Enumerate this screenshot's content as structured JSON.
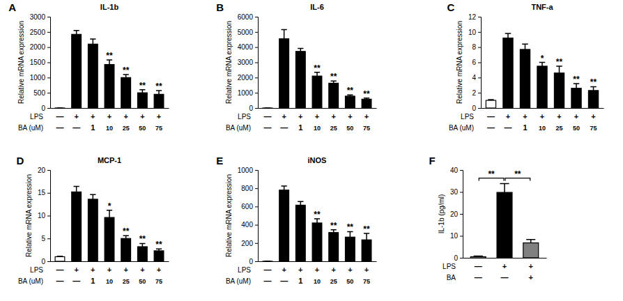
{
  "chart_data": [
    {
      "type": "bar",
      "panel": "A",
      "title": "IL-1b",
      "y_label": "Relative mRNA expression",
      "x_rows": [
        {
          "label": "LPS",
          "cells": [
            "—",
            "+",
            "+",
            "+",
            "+",
            "+",
            "+"
          ]
        },
        {
          "label": "BA (uM)",
          "cells": [
            "—",
            "—",
            "1",
            "10",
            "25",
            "50",
            "75"
          ]
        }
      ],
      "values": [
        1,
        2420,
        2100,
        1430,
        1000,
        500,
        450
      ],
      "errors": [
        0.2,
        130,
        170,
        150,
        100,
        100,
        120
      ],
      "significance": [
        null,
        null,
        null,
        "**",
        "**",
        "**",
        "**"
      ],
      "colors": [
        "#ffffff",
        "#000000",
        "#000000",
        "#000000",
        "#000000",
        "#000000",
        "#000000"
      ],
      "ylim": [
        0,
        3000
      ],
      "yticks": [
        0,
        500,
        1000,
        1500,
        2000,
        2500,
        3000
      ]
    },
    {
      "type": "bar",
      "panel": "B",
      "title": "IL-6",
      "y_label": "Relative mRNA expression",
      "x_rows": [
        {
          "label": "LPS",
          "cells": [
            "—",
            "+",
            "+",
            "+",
            "+",
            "+",
            "+"
          ]
        },
        {
          "label": "BA (uM)",
          "cells": [
            "—",
            "—",
            "1",
            "10",
            "25",
            "50",
            "75"
          ]
        }
      ],
      "values": [
        1,
        4550,
        3720,
        2100,
        1630,
        780,
        580
      ],
      "errors": [
        0.2,
        600,
        200,
        250,
        150,
        80,
        70
      ],
      "significance": [
        null,
        null,
        null,
        "**",
        "**",
        "**",
        "**"
      ],
      "colors": [
        "#ffffff",
        "#000000",
        "#000000",
        "#000000",
        "#000000",
        "#000000",
        "#000000"
      ],
      "ylim": [
        0,
        6000
      ],
      "yticks": [
        0,
        1000,
        2000,
        3000,
        4000,
        5000,
        6000
      ]
    },
    {
      "type": "bar",
      "panel": "C",
      "title": "TNF-a",
      "y_label": "Relative mRNA expression",
      "x_rows": [
        {
          "label": "LPS",
          "cells": [
            "—",
            "+",
            "+",
            "+",
            "+",
            "+",
            "+"
          ]
        },
        {
          "label": "BA (uM)",
          "cells": [
            "—",
            "—",
            "1",
            "10",
            "25",
            "50",
            "75"
          ]
        }
      ],
      "values": [
        1.0,
        9.2,
        7.7,
        5.5,
        4.6,
        2.6,
        2.3
      ],
      "errors": [
        0.1,
        0.6,
        0.7,
        0.5,
        0.9,
        0.6,
        0.5
      ],
      "significance": [
        null,
        null,
        null,
        "*",
        "**",
        "**",
        "**"
      ],
      "colors": [
        "#ffffff",
        "#000000",
        "#000000",
        "#000000",
        "#000000",
        "#000000",
        "#000000"
      ],
      "ylim": [
        0,
        12
      ],
      "yticks": [
        0,
        2,
        4,
        6,
        8,
        10,
        12
      ]
    },
    {
      "type": "bar",
      "panel": "D",
      "title": "MCP-1",
      "y_label": "Relative mRNA expression",
      "x_rows": [
        {
          "label": "LPS",
          "cells": [
            "—",
            "+",
            "+",
            "+",
            "+",
            "+",
            "+"
          ]
        },
        {
          "label": "BA (uM)",
          "cells": [
            "—",
            "—",
            "1",
            "10",
            "25",
            "50",
            "75"
          ]
        }
      ],
      "values": [
        1.0,
        15.2,
        13.6,
        9.6,
        5.0,
        3.2,
        2.3
      ],
      "errors": [
        0.1,
        1.2,
        1.0,
        1.6,
        0.6,
        0.7,
        0.4
      ],
      "significance": [
        null,
        null,
        null,
        "*",
        "**",
        "**",
        "**"
      ],
      "colors": [
        "#ffffff",
        "#000000",
        "#000000",
        "#000000",
        "#000000",
        "#000000",
        "#000000"
      ],
      "ylim": [
        0,
        20
      ],
      "yticks": [
        0,
        5,
        10,
        15,
        20
      ]
    },
    {
      "type": "bar",
      "panel": "E",
      "title": "iNOS",
      "y_label": "Relative mRNA expression",
      "x_rows": [
        {
          "label": "LPS",
          "cells": [
            "—",
            "+",
            "+",
            "+",
            "+",
            "+",
            "+"
          ]
        },
        {
          "label": "BA (uM)",
          "cells": [
            "—",
            "—",
            "1",
            "10",
            "25",
            "50",
            "75"
          ]
        }
      ],
      "values": [
        1,
        780,
        615,
        420,
        315,
        265,
        235
      ],
      "errors": [
        0.2,
        45,
        40,
        45,
        30,
        60,
        70
      ],
      "significance": [
        null,
        null,
        null,
        "**",
        "**",
        "**",
        "**"
      ],
      "colors": [
        "#ffffff",
        "#000000",
        "#000000",
        "#000000",
        "#000000",
        "#000000",
        "#000000"
      ],
      "ylim": [
        0,
        1000
      ],
      "yticks": [
        0,
        200,
        400,
        600,
        800,
        1000
      ]
    },
    {
      "type": "bar",
      "panel": "F",
      "y_label": "IL-1b (pg/ml)",
      "x_rows": [
        {
          "label": "LPS",
          "cells": [
            "—",
            "+",
            "+"
          ]
        },
        {
          "label": "BA",
          "cells": [
            "—",
            "—",
            "+"
          ]
        }
      ],
      "values": [
        0.5,
        29.8,
        6.8
      ],
      "errors": [
        0.3,
        4,
        1.5
      ],
      "comparisons": [
        {
          "from": 0,
          "to": 1,
          "label": "**"
        },
        {
          "from": 1,
          "to": 2,
          "label": "**"
        }
      ],
      "colors": [
        "#ffffff",
        "#000000",
        "#808080"
      ],
      "ylim": [
        0,
        40
      ],
      "yticks": [
        0,
        10,
        20,
        30,
        40
      ]
    }
  ]
}
